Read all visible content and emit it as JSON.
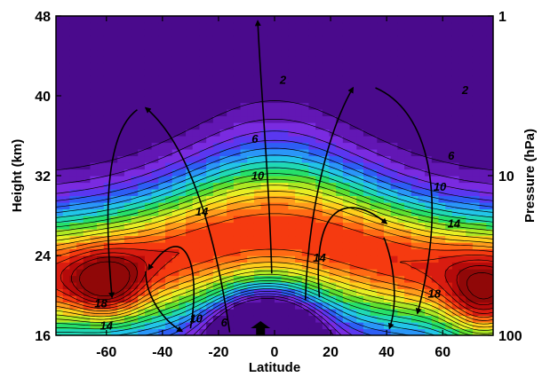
{
  "chart_data": {
    "type": "heatmap",
    "subtype": "filled contour with circulation arrows",
    "xlabel": "Latitude",
    "ylabel": "Height (km)",
    "ylabel_right": "Pressure (hPa)",
    "xlim": [
      -78,
      78
    ],
    "ylim": [
      16,
      48
    ],
    "x_ticks": [
      -60,
      -40,
      -20,
      0,
      20,
      40,
      60
    ],
    "y_ticks_left": [
      16,
      24,
      32,
      40,
      48
    ],
    "y_ticks_right": [
      {
        "height_km": 48,
        "label": "1"
      },
      {
        "height_km": 32,
        "label": "10"
      },
      {
        "height_km": 16,
        "label": "100"
      }
    ],
    "contour_levels": [
      2,
      6,
      10,
      14,
      18
    ],
    "contour_labels": [
      {
        "x": 3,
        "y": 41.2,
        "text": "2"
      },
      {
        "x": 68,
        "y": 40.2,
        "text": "2"
      },
      {
        "x": -7,
        "y": 35.3,
        "text": "6"
      },
      {
        "x": 63,
        "y": 33.6,
        "text": "6"
      },
      {
        "x": -6,
        "y": 31.6,
        "text": "10"
      },
      {
        "x": 59,
        "y": 30.5,
        "text": "10"
      },
      {
        "x": -26,
        "y": 28.0,
        "text": "14"
      },
      {
        "x": 64,
        "y": 26.8,
        "text": "14"
      },
      {
        "x": 16,
        "y": 23.4,
        "text": "14"
      },
      {
        "x": -62,
        "y": 18.8,
        "text": "18"
      },
      {
        "x": 57,
        "y": 19.8,
        "text": "18"
      },
      {
        "x": -28,
        "y": 17.3,
        "text": "10"
      },
      {
        "x": -18,
        "y": 16.9,
        "text": "6"
      },
      {
        "x": -60,
        "y": 16.6,
        "text": "14"
      }
    ],
    "max_regions": [
      {
        "lat": -60,
        "height_km": 21,
        "value": 19
      },
      {
        "lat": 72,
        "height_km": 19,
        "value": 19
      }
    ],
    "colorscale": [
      "#4a0a8c",
      "#6217b4",
      "#7a2be0",
      "#5a37f0",
      "#2d5ef5",
      "#2a96f8",
      "#22c5e8",
      "#20d9b5",
      "#26e06a",
      "#5fe030",
      "#aee824",
      "#e8ef24",
      "#ffce1c",
      "#ff9c1c",
      "#ff6a14",
      "#f53a10",
      "#d81c10",
      "#b40a0a",
      "#900808"
    ],
    "circulation_arrows": 8,
    "upwelling_marker_lat": -5
  }
}
